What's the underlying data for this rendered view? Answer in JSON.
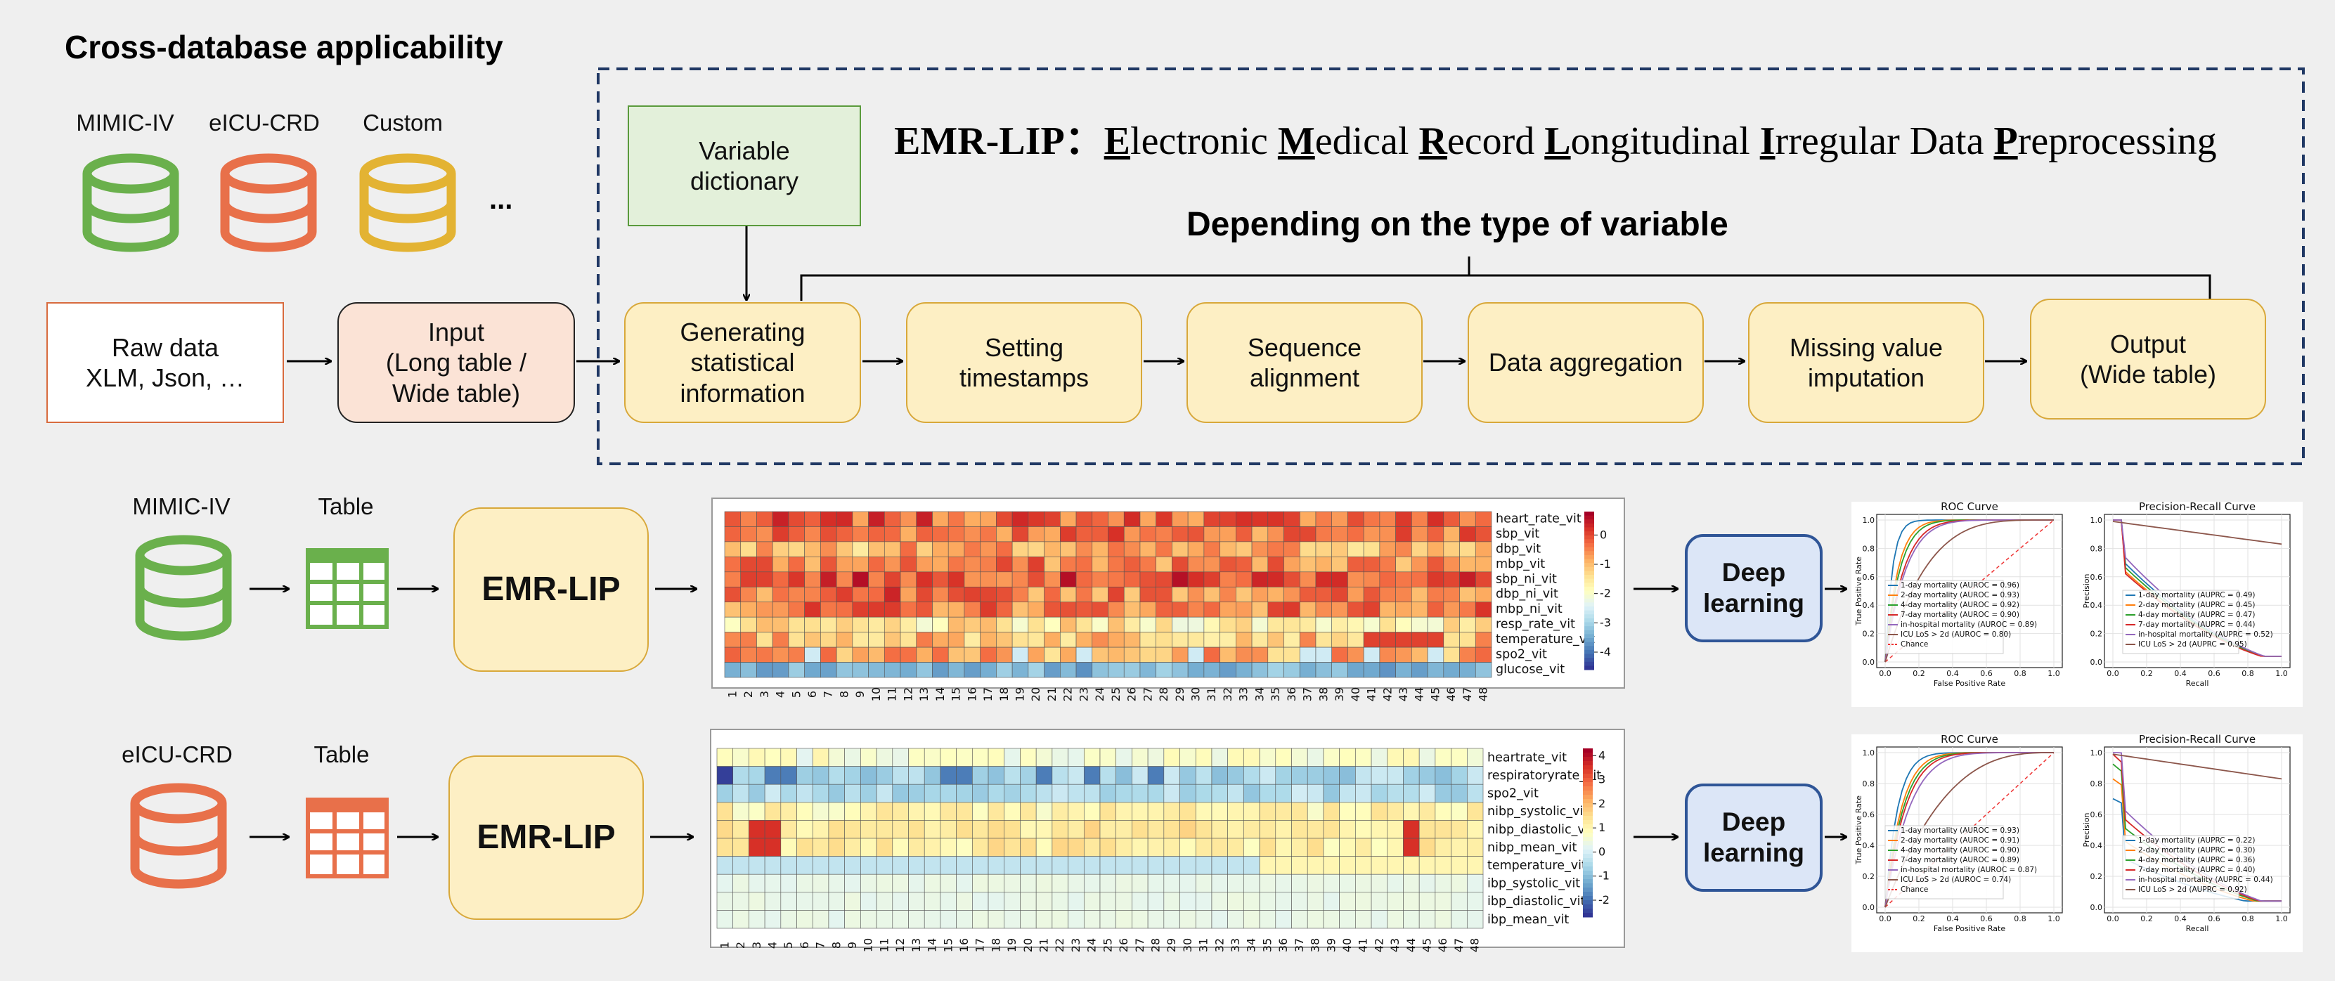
{
  "top": {
    "title": "Cross-database applicability",
    "databases": [
      {
        "label": "MIMIC-IV",
        "color": "#6ab04c"
      },
      {
        "label": "eICU-CRD",
        "color": "#e8704a"
      },
      {
        "label": "Custom",
        "color": "#e3b333"
      }
    ],
    "ellipsis": "...",
    "raw_data": "Raw data\nXLM, Json, …",
    "input": "Input\n(Long table /\nWide table)",
    "variable_dictionary": "Variable\ndictionary",
    "emr_title": {
      "prefix": "EMR-LIP：",
      "words": [
        {
          "initial": "E",
          "rest": "lectronic "
        },
        {
          "initial": "M",
          "rest": "edical "
        },
        {
          "initial": "R",
          "rest": "ecord "
        },
        {
          "initial": "L",
          "rest": "ongitudinal "
        },
        {
          "initial": "I",
          "rest": "rregular Data "
        },
        {
          "initial": "P",
          "rest": "reprocessing"
        }
      ]
    },
    "depending_label": "Depending on the type of variable",
    "steps": [
      "Generating\nstatistical\ninformation",
      "Setting\ntimestamps",
      "Sequence\nalignment",
      "Data aggregation",
      "Missing value\nimputation",
      "Output\n(Wide table)"
    ]
  },
  "rows": [
    {
      "db_label": "MIMIC-IV",
      "db_color": "#6ab04c",
      "table_label": "Table",
      "emr": "EMR-LIP",
      "deep_learning": "Deep\nlearning",
      "heatmap": {
        "variables": [
          "heart_rate_vit",
          "sbp_vit",
          "dbp_vit",
          "mbp_vit",
          "sbp_ni_vit",
          "dbp_ni_vit",
          "mbp_ni_vit",
          "resp_rate_vit",
          "temperature_vit",
          "spo2_vit",
          "glucose_vit"
        ],
        "colorbar_ticks": [
          "0",
          "-1",
          "-2",
          "-3",
          "-4"
        ],
        "colorbar_range": [
          -4.6,
          0.8
        ]
      },
      "roc": {
        "title": "ROC Curve",
        "xlabel": "False Positive Rate",
        "ylabel": "True Positive Rate",
        "legend": [
          "1-day mortality (AUROC = 0.96)",
          "2-day mortality (AUROC = 0.93)",
          "4-day mortality (AUROC = 0.92)",
          "7-day mortality (AUROC = 0.90)",
          "in-hospital mortality (AUROC = 0.89)",
          "ICU LoS > 2d (AUROC = 0.80)",
          "Chance"
        ],
        "auroc": [
          0.96,
          0.93,
          0.92,
          0.9,
          0.89,
          0.8
        ]
      },
      "pr": {
        "title": "Precision-Recall Curve",
        "xlabel": "Recall",
        "ylabel": "Precision",
        "legend": [
          "1-day mortality (AUPRC = 0.49)",
          "2-day mortality (AUPRC = 0.45)",
          "4-day mortality (AUPRC = 0.47)",
          "7-day mortality (AUPRC = 0.44)",
          "in-hospital mortality (AUPRC = 0.52)",
          "ICU LoS > 2d (AUPRC = 0.95)"
        ],
        "auprc": [
          0.49,
          0.45,
          0.47,
          0.44,
          0.52,
          0.95
        ]
      }
    },
    {
      "db_label": "eICU-CRD",
      "db_color": "#e8704a",
      "table_label": "Table",
      "emr": "EMR-LIP",
      "deep_learning": "Deep\nlearning",
      "heatmap": {
        "variables": [
          "heartrate_vit",
          "respiratoryrate_vit",
          "spo2_vit",
          "nibp_systolic_vit",
          "nibp_diastolic_vit",
          "nibp_mean_vit",
          "temperature_vit",
          "ibp_systolic_vit",
          "ibp_diastolic_vit",
          "ibp_mean_vit"
        ],
        "colorbar_ticks": [
          "4",
          "3",
          "2",
          "1",
          "0",
          "-1",
          "-2"
        ],
        "colorbar_range": [
          -2.7,
          4.3
        ]
      },
      "roc": {
        "title": "ROC Curve",
        "xlabel": "False Positive Rate",
        "ylabel": "True Positive Rate",
        "legend": [
          "1-day mortality (AUROC = 0.93)",
          "2-day mortality (AUROC = 0.91)",
          "4-day mortality (AUROC = 0.90)",
          "7-day mortality (AUROC = 0.89)",
          "in-hospital mortality (AUROC = 0.87)",
          "ICU LoS > 2d (AUROC = 0.74)",
          "Chance"
        ],
        "auroc": [
          0.93,
          0.91,
          0.9,
          0.89,
          0.87,
          0.74
        ]
      },
      "pr": {
        "title": "Precision-Recall Curve",
        "xlabel": "Recall",
        "ylabel": "Precision",
        "legend": [
          "1-day mortality (AUPRC = 0.22)",
          "2-day mortality (AUPRC = 0.30)",
          "4-day mortality (AUPRC = 0.36)",
          "7-day mortality (AUPRC = 0.40)",
          "in-hospital mortality (AUPRC = 0.44)",
          "ICU LoS > 2d (AUPRC = 0.92)"
        ],
        "auprc": [
          0.22,
          0.3,
          0.36,
          0.4,
          0.44,
          0.92
        ]
      }
    }
  ],
  "curve_colors": [
    "#1f77b4",
    "#ff7f0e",
    "#2ca02c",
    "#d62728",
    "#9467bd",
    "#8c564b"
  ],
  "x_tick_labels": [
    "1",
    "2",
    "3",
    "4",
    "5",
    "6",
    "7",
    "8",
    "9",
    "10",
    "11",
    "12",
    "13",
    "14",
    "15",
    "16",
    "17",
    "18",
    "19",
    "20",
    "21",
    "22",
    "23",
    "24",
    "25",
    "26",
    "27",
    "28",
    "29",
    "30",
    "31",
    "32",
    "33",
    "34",
    "35",
    "36",
    "37",
    "38",
    "39",
    "40",
    "41",
    "42",
    "43",
    "44",
    "45",
    "46",
    "47",
    "48"
  ],
  "axis_ticks": [
    "0.0",
    "0.2",
    "0.4",
    "0.6",
    "0.8",
    "1.0"
  ]
}
